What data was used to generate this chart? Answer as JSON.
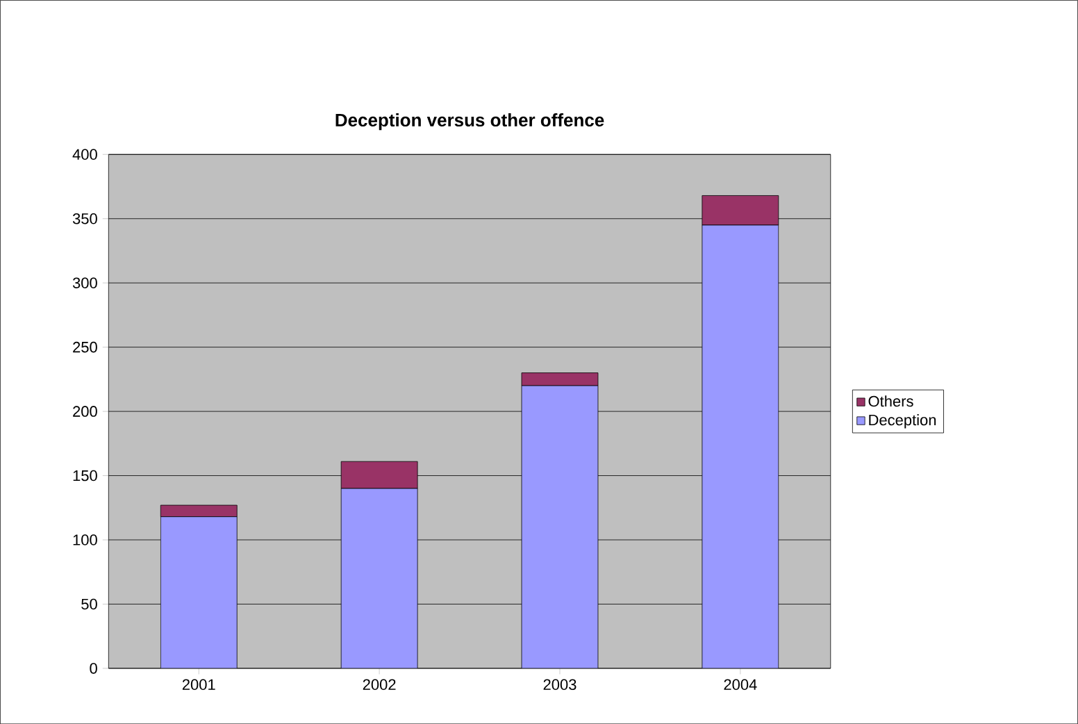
{
  "chart_data": {
    "type": "bar",
    "title": "Deception versus other offence",
    "stacked": true,
    "categories": [
      "2001",
      "2002",
      "2003",
      "2004"
    ],
    "series": [
      {
        "name": "Deception",
        "color": "#9999ff",
        "values": [
          118,
          140,
          220,
          345
        ]
      },
      {
        "name": "Others",
        "color": "#993366",
        "values": [
          9,
          21,
          10,
          23
        ]
      }
    ],
    "ylim": [
      0,
      400
    ],
    "yticks": [
      0,
      50,
      100,
      150,
      200,
      250,
      300,
      350,
      400
    ],
    "grid": "y",
    "legend": "right"
  }
}
